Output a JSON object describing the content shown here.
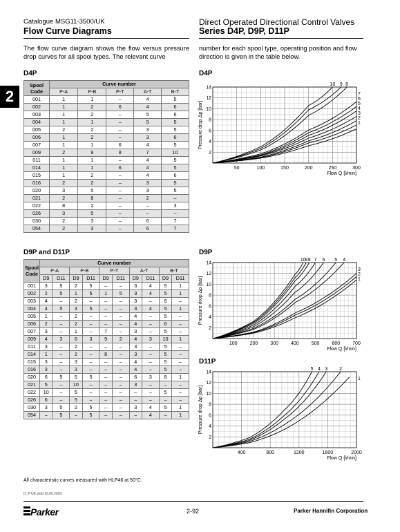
{
  "header": {
    "catalogue": "Catalogue MSG11-3500/UK",
    "left_title": "Flow Curve Diagrams",
    "right_subtitle": "Direct Operated Directional Control Valves",
    "right_title": "Series D4P, D9P, D11P"
  },
  "tab_marker": "2",
  "intro": {
    "left": "The flow curve diagram shows the flow versus pressure drop curves for all spool types. The relevant curve",
    "right": "number for each spool type, operating position and flow direction is given in the table below."
  },
  "d4p_table": {
    "title": "D4P",
    "spool_col": "Spool Code",
    "spool_col_l1": "Spool",
    "spool_col_l2": "Code",
    "group": "Curve number",
    "columns": [
      "P-A",
      "P-B",
      "P-T",
      "A-T",
      "B-T"
    ],
    "rows": [
      [
        "001",
        "1",
        "1",
        "–",
        "4",
        "5"
      ],
      [
        "002",
        "1",
        "2",
        "6",
        "4",
        "6"
      ],
      [
        "003",
        "1",
        "2",
        "–",
        "5",
        "6"
      ],
      [
        "004",
        "1",
        "1",
        "–",
        "5",
        "5"
      ],
      [
        "005",
        "2",
        "2",
        "–",
        "3",
        "5"
      ],
      [
        "006",
        "1",
        "2",
        "–",
        "3",
        "6"
      ],
      [
        "007",
        "1",
        "1",
        "6",
        "4",
        "5"
      ],
      [
        "009",
        "2",
        "9",
        "8",
        "7",
        "10"
      ],
      [
        "011",
        "1",
        "1",
        "–",
        "4",
        "5"
      ],
      [
        "014",
        "1",
        "1",
        "6",
        "4",
        "5"
      ],
      [
        "015",
        "1",
        "2",
        "–",
        "4",
        "6"
      ],
      [
        "016",
        "2",
        "2",
        "–",
        "3",
        "5"
      ],
      [
        "020",
        "3",
        "5",
        "–",
        "3",
        "5"
      ],
      [
        "021",
        "2",
        "8",
        "–",
        "2",
        "–"
      ],
      [
        "022",
        "8",
        "2",
        "–",
        "–",
        "3"
      ],
      [
        "026",
        "3",
        "5",
        "–",
        "–",
        "–"
      ],
      [
        "030",
        "2",
        "3",
        "–",
        "6",
        "7"
      ],
      [
        "054",
        "2",
        "3",
        "–",
        "6",
        "7"
      ]
    ]
  },
  "d9p_table": {
    "title": "D9P and D11P",
    "spool_col_l1": "Spool",
    "spool_col_l2": "Code",
    "group": "Curve number",
    "columns": [
      "P-A",
      "P-B",
      "P-T",
      "A-T",
      "B-T"
    ],
    "subcolumns": [
      "D9",
      "D11"
    ],
    "rows": [
      [
        "001",
        "3",
        "5",
        "2",
        "5",
        "–",
        "–",
        "3",
        "4",
        "5",
        "1"
      ],
      [
        "002",
        "2",
        "5",
        "1",
        "5",
        "1",
        "5",
        "3",
        "4",
        "5",
        "1"
      ],
      [
        "003",
        "4",
        "–",
        "2",
        "–",
        "–",
        "–",
        "3",
        "–",
        "6",
        "–"
      ],
      [
        "004",
        "4",
        "5",
        "3",
        "5",
        "–",
        "–",
        "3",
        "4",
        "5",
        "1"
      ],
      [
        "005",
        "1",
        "–",
        "2",
        "–",
        "–",
        "–",
        "4",
        "–",
        "5",
        "–"
      ],
      [
        "006",
        "2",
        "–",
        "2",
        "–",
        "–",
        "–",
        "4",
        "–",
        "6",
        "–"
      ],
      [
        "007",
        "3",
        "–",
        "1",
        "–",
        "7",
        "–",
        "3",
        "–",
        "5",
        "–"
      ],
      [
        "009",
        "4",
        "3",
        "6",
        "3",
        "9",
        "2",
        "4",
        "3",
        "10",
        "1"
      ],
      [
        "011",
        "3",
        "–",
        "2",
        "–",
        "–",
        "–",
        "3",
        "–",
        "5",
        "–"
      ],
      [
        "014",
        "1",
        "–",
        "2",
        "–",
        "8",
        "–",
        "3",
        "–",
        "5",
        "–"
      ],
      [
        "015",
        "3",
        "–",
        "3",
        "–",
        "–",
        "–",
        "4",
        "–",
        "5",
        "–"
      ],
      [
        "016",
        "3",
        "–",
        "3",
        "–",
        "–",
        "–",
        "4",
        "–",
        "5",
        "–"
      ],
      [
        "020",
        "6",
        "5",
        "5",
        "5",
        "–",
        "–",
        "6",
        "3",
        "8",
        "1"
      ],
      [
        "021",
        "5",
        "–",
        "10",
        "–",
        "–",
        "–",
        "3",
        "–",
        "–",
        "–"
      ],
      [
        "022",
        "10",
        "–",
        "5",
        "–",
        "–",
        "–",
        "–",
        "–",
        "5",
        "–"
      ],
      [
        "026",
        "6",
        "–",
        "5",
        "–",
        "–",
        "–",
        "–",
        "–",
        "–",
        "–"
      ],
      [
        "030",
        "3",
        "5",
        "2",
        "5",
        "–",
        "–",
        "3",
        "4",
        "5",
        "1"
      ],
      [
        "054",
        "–",
        "5",
        "–",
        "5",
        "–",
        "–",
        "–",
        "4",
        "–",
        "1"
      ]
    ]
  },
  "chart_data": [
    {
      "type": "line",
      "title": "D4P",
      "xlabel": "Flow Q [l/min]",
      "ylabel": "Pressure drop Δp [bar]",
      "xlim": [
        0,
        300
      ],
      "ylim": [
        0,
        14
      ],
      "xticks": [
        50,
        100,
        150,
        200,
        250,
        300
      ],
      "yticks": [
        2,
        4,
        6,
        8,
        10,
        12,
        14
      ],
      "grid": true,
      "series": [
        {
          "name": "1",
          "x": [
            0,
            100,
            200,
            300
          ],
          "y": [
            0,
            0.9,
            3.2,
            6.3
          ]
        },
        {
          "name": "2",
          "x": [
            0,
            100,
            200,
            300
          ],
          "y": [
            0,
            1.0,
            3.7,
            7.0
          ]
        },
        {
          "name": "3",
          "x": [
            0,
            100,
            200,
            300
          ],
          "y": [
            0,
            1.1,
            4.1,
            7.8
          ]
        },
        {
          "name": "4",
          "x": [
            0,
            100,
            200,
            300
          ],
          "y": [
            0,
            1.3,
            4.6,
            8.6
          ]
        },
        {
          "name": "5",
          "x": [
            0,
            100,
            200,
            300
          ],
          "y": [
            0,
            1.4,
            5.1,
            9.6
          ]
        },
        {
          "name": "6",
          "x": [
            0,
            100,
            200,
            300
          ],
          "y": [
            0,
            1.5,
            5.6,
            10.4
          ]
        },
        {
          "name": "7",
          "x": [
            0,
            100,
            200,
            300
          ],
          "y": [
            0,
            1.7,
            6.1,
            11.3
          ]
        },
        {
          "name": "8",
          "x": [
            0,
            100,
            200,
            280
          ],
          "y": [
            0,
            2.4,
            8.8,
            14
          ]
        },
        {
          "name": "9",
          "x": [
            0,
            100,
            200,
            268
          ],
          "y": [
            0,
            2.7,
            9.8,
            14
          ]
        },
        {
          "name": "10",
          "x": [
            0,
            100,
            200,
            250
          ],
          "y": [
            0,
            3.0,
            10.6,
            14
          ]
        }
      ]
    },
    {
      "type": "line",
      "title": "D9P",
      "xlabel": "Flow Q [l/min]",
      "ylabel": "Pressure drop Δp [bar]",
      "xlim": [
        0,
        700
      ],
      "ylim": [
        0,
        14
      ],
      "xticks": [
        100,
        200,
        300,
        400,
        500,
        600,
        700
      ],
      "yticks": [
        2,
        4,
        6,
        8,
        10,
        12,
        14
      ],
      "grid": true,
      "series": [
        {
          "name": "1",
          "x": [
            0,
            200,
            400,
            700
          ],
          "y": [
            0,
            1.0,
            3.8,
            10.8
          ]
        },
        {
          "name": "2",
          "x": [
            0,
            200,
            400,
            700
          ],
          "y": [
            0,
            1.1,
            4.3,
            11.4
          ]
        },
        {
          "name": "3",
          "x": [
            0,
            200,
            400,
            700
          ],
          "y": [
            0,
            1.2,
            4.7,
            12.0
          ]
        },
        {
          "name": "4",
          "x": [
            0,
            200,
            400,
            640
          ],
          "y": [
            0,
            1.7,
            6.6,
            14
          ]
        },
        {
          "name": "5",
          "x": [
            0,
            200,
            400,
            600
          ],
          "y": [
            0,
            1.9,
            7.2,
            14
          ]
        },
        {
          "name": "6",
          "x": [
            0,
            200,
            400,
            540
          ],
          "y": [
            0,
            2.2,
            8.5,
            14
          ]
        },
        {
          "name": "7",
          "x": [
            0,
            200,
            400,
            500
          ],
          "y": [
            0,
            2.5,
            9.6,
            14
          ]
        },
        {
          "name": "8",
          "x": [
            0,
            200,
            400,
            470
          ],
          "y": [
            0,
            2.8,
            10.6,
            14
          ]
        },
        {
          "name": "9",
          "x": [
            0,
            200,
            400,
            455
          ],
          "y": [
            0,
            3.0,
            11.2,
            14
          ]
        },
        {
          "name": "10",
          "x": [
            0,
            200,
            400,
            440
          ],
          "y": [
            0,
            3.2,
            11.8,
            14
          ]
        }
      ]
    },
    {
      "type": "line",
      "title": "D11P",
      "xlabel": "Flow Q [l/min]",
      "ylabel": "Pressure drop Δp [bar]",
      "xlim": [
        0,
        2000
      ],
      "ylim": [
        0,
        14
      ],
      "xticks": [
        400,
        800,
        1200,
        1600,
        2000
      ],
      "yticks": [
        2,
        4,
        6,
        8,
        10,
        12,
        14
      ],
      "grid": true,
      "series": [
        {
          "name": "1",
          "x": [
            0,
            500,
            1000,
            1900
          ],
          "y": [
            0,
            0.9,
            3.4,
            13.0
          ]
        },
        {
          "name": "2",
          "x": [
            0,
            500,
            1000,
            1780
          ],
          "y": [
            0,
            1.1,
            4.3,
            14
          ]
        },
        {
          "name": "3",
          "x": [
            0,
            500,
            1000,
            1580
          ],
          "y": [
            0,
            1.3,
            5.3,
            14
          ]
        },
        {
          "name": "4",
          "x": [
            0,
            500,
            1000,
            1480
          ],
          "y": [
            0,
            1.5,
            6.0,
            14
          ]
        },
        {
          "name": "5",
          "x": [
            0,
            500,
            1000,
            1380
          ],
          "y": [
            0,
            1.8,
            7.0,
            14
          ]
        }
      ]
    }
  ],
  "chart_labels": {
    "d4p_title": "D4P",
    "d9p_title": "D9P",
    "d11p_title": "D11P",
    "d4p_top_labels": [
      "10",
      "9",
      "8"
    ],
    "d4p_right_labels": [
      "7",
      "6",
      "5",
      "4",
      "3",
      "2",
      "1"
    ],
    "d9p_top_labels": [
      "10",
      "9",
      "8",
      "7",
      "6",
      "5",
      "4"
    ],
    "d9p_right_labels": [
      "3",
      "2",
      "1"
    ],
    "d11p_top_labels": [
      "5",
      "4",
      "3",
      "2"
    ],
    "d11p_right_labels": [
      "1"
    ]
  },
  "footer": {
    "note": "All characteristic curves measured with HLP46 at 50°C.",
    "doc_id": "D_P UK.indd 15.09.2020",
    "page": "2-92",
    "company": "Parker Hannifin Corporation",
    "logo_text": "Parker"
  }
}
